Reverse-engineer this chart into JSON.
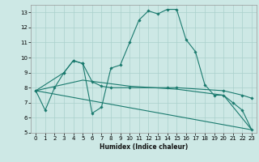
{
  "xlabel": "Humidex (Indice chaleur)",
  "bg_color": "#cde8e5",
  "grid_color": "#aad0cc",
  "line_color": "#1a7a6e",
  "xlim": [
    -0.5,
    23.5
  ],
  "ylim": [
    5,
    13.5
  ],
  "yticks": [
    5,
    6,
    7,
    8,
    9,
    10,
    11,
    12,
    13
  ],
  "xticks": [
    0,
    1,
    2,
    3,
    4,
    5,
    6,
    7,
    8,
    9,
    10,
    11,
    12,
    13,
    14,
    15,
    16,
    17,
    18,
    19,
    20,
    21,
    22,
    23
  ],
  "series": [
    {
      "x": [
        0,
        1,
        2,
        3,
        4,
        5,
        6,
        7,
        8,
        9,
        10,
        11,
        12,
        13,
        14,
        15,
        16,
        17,
        18,
        19,
        20,
        21,
        22,
        23
      ],
      "y": [
        7.8,
        6.5,
        8.0,
        9.0,
        9.8,
        9.6,
        6.3,
        6.7,
        9.3,
        9.5,
        11.0,
        12.5,
        13.1,
        12.9,
        13.2,
        13.2,
        11.2,
        10.4,
        8.2,
        7.5,
        7.5,
        7.0,
        6.5,
        5.2
      ],
      "markers": true
    },
    {
      "x": [
        0,
        3,
        4,
        5,
        6,
        7,
        8,
        10,
        14,
        15,
        20,
        22,
        23
      ],
      "y": [
        7.8,
        9.0,
        9.8,
        9.6,
        8.4,
        8.1,
        8.0,
        8.0,
        8.0,
        8.0,
        7.8,
        7.5,
        7.3
      ],
      "markers": true
    },
    {
      "x": [
        0,
        5,
        10,
        15,
        20,
        23
      ],
      "y": [
        7.8,
        8.5,
        8.1,
        7.9,
        7.5,
        5.2
      ],
      "markers": false
    },
    {
      "x": [
        0,
        23
      ],
      "y": [
        7.8,
        5.2
      ],
      "markers": false
    }
  ]
}
